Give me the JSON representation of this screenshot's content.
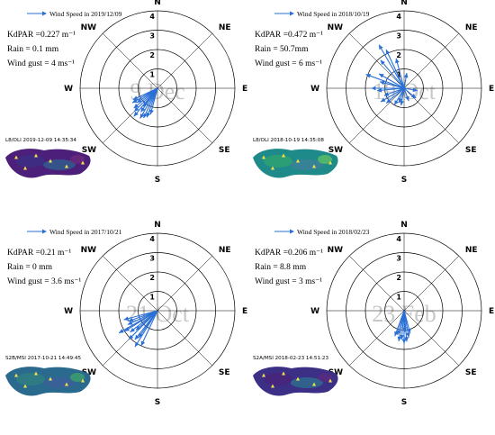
{
  "chart_data": [
    {
      "type": "polar-vector",
      "legend": "Wind Speed in 2019/12/09",
      "watermark": "9 Dec",
      "stats": [
        "KdPAR =0.227 m⁻¹",
        "Rain = 0.1 mm",
        "Wind gust = 4 ms⁻¹"
      ],
      "image_label": "L8/OLI 2019-12-09 14:35:34",
      "thumb_colors": [
        "#4b1f7a",
        "#3b2f86",
        "#2f5f8f",
        "#6b2a7a"
      ],
      "vectors": [
        {
          "dir": 195,
          "speed": 1.4
        },
        {
          "dir": 200,
          "speed": 1.6
        },
        {
          "dir": 205,
          "speed": 1.7
        },
        {
          "dir": 210,
          "speed": 1.8
        },
        {
          "dir": 215,
          "speed": 1.5
        },
        {
          "dir": 220,
          "speed": 1.9
        },
        {
          "dir": 225,
          "speed": 1.7
        },
        {
          "dir": 230,
          "speed": 1.6
        },
        {
          "dir": 235,
          "speed": 1.3
        },
        {
          "dir": 240,
          "speed": 1.5
        },
        {
          "dir": 245,
          "speed": 1.4
        },
        {
          "dir": 218,
          "speed": 1.2
        }
      ]
    },
    {
      "type": "polar-vector",
      "legend": "Wind Speed in 2018/10/19",
      "watermark": "19 Oct",
      "stats": [
        "KdPAR =0.472 m⁻¹",
        "Rain = 50.7mm",
        "Wind gust = 6 ms⁻¹"
      ],
      "image_label": "L8/OLI 2018-10-19 14:35:08",
      "thumb_colors": [
        "#1f8a8a",
        "#2fa36f",
        "#3e7f9a",
        "#5cbf62"
      ],
      "vectors": [
        {
          "dir": 330,
          "speed": 2.6
        },
        {
          "dir": 335,
          "speed": 2.2
        },
        {
          "dir": 320,
          "speed": 1.9
        },
        {
          "dir": 300,
          "speed": 1.5
        },
        {
          "dir": 285,
          "speed": 1.3
        },
        {
          "dir": 270,
          "speed": 1.7
        },
        {
          "dir": 265,
          "speed": 1.4
        },
        {
          "dir": 250,
          "speed": 1.1
        },
        {
          "dir": 240,
          "speed": 1.4
        },
        {
          "dir": 230,
          "speed": 1.2
        },
        {
          "dir": 210,
          "speed": 1.0
        },
        {
          "dir": 200,
          "speed": 0.8
        },
        {
          "dir": 190,
          "speed": 0.9
        },
        {
          "dir": 160,
          "speed": 0.7
        },
        {
          "dir": 130,
          "speed": 0.8
        },
        {
          "dir": 100,
          "speed": 0.7
        },
        {
          "dir": 290,
          "speed": 2.1
        },
        {
          "dir": 345,
          "speed": 1.6
        },
        {
          "dir": 10,
          "speed": 0.8
        }
      ]
    },
    {
      "type": "polar-vector",
      "legend": "Wind Speed in 2017/10/21",
      "watermark": "21 Oct",
      "stats": [
        "KdPAR =0.21 m⁻¹",
        "Rain = 0 mm",
        "Wind gust = 3.6 ms⁻¹"
      ],
      "image_label": "S2B/MSI 2017-10-21 14:49:45",
      "thumb_colors": [
        "#2a6a8f",
        "#2f7f7f",
        "#3d5f9a",
        "#3fa06a"
      ],
      "vectors": [
        {
          "dir": 205,
          "speed": 2.0
        },
        {
          "dir": 212,
          "speed": 2.2
        },
        {
          "dir": 218,
          "speed": 1.9
        },
        {
          "dir": 225,
          "speed": 2.1
        },
        {
          "dir": 232,
          "speed": 1.8
        },
        {
          "dir": 238,
          "speed": 2.0
        },
        {
          "dir": 245,
          "speed": 1.7
        },
        {
          "dir": 250,
          "speed": 1.6
        },
        {
          "dir": 255,
          "speed": 1.8
        },
        {
          "dir": 228,
          "speed": 1.5
        },
        {
          "dir": 215,
          "speed": 1.7
        },
        {
          "dir": 240,
          "speed": 2.3
        }
      ]
    },
    {
      "type": "polar-vector",
      "legend": "Wind Speed in 2018/02/23",
      "watermark": "23 Feb",
      "stats": [
        "KdPAR =0.206 m⁻¹",
        "Rain = 8.8 mm",
        "Wind gust = 3 ms⁻¹"
      ],
      "image_label": "S2A/MSI 2018-02-23 14:51:23",
      "thumb_colors": [
        "#3b2f86",
        "#4a237a",
        "#2f6f8f",
        "#5a2a80"
      ],
      "vectors": [
        {
          "dir": 170,
          "speed": 1.4
        },
        {
          "dir": 175,
          "speed": 1.6
        },
        {
          "dir": 180,
          "speed": 1.7
        },
        {
          "dir": 185,
          "speed": 1.5
        },
        {
          "dir": 190,
          "speed": 1.6
        },
        {
          "dir": 195,
          "speed": 1.3
        },
        {
          "dir": 200,
          "speed": 1.4
        },
        {
          "dir": 165,
          "speed": 1.2
        },
        {
          "dir": 178,
          "speed": 1.1
        }
      ]
    }
  ],
  "axes": {
    "directions": [
      "N",
      "NE",
      "E",
      "SE",
      "S",
      "SW",
      "W",
      "NW"
    ],
    "rings": [
      1,
      2,
      3,
      4
    ],
    "rmax": 4
  },
  "colors": {
    "arrow": "#2a6fd6",
    "watermark": "#c8c8c8"
  }
}
